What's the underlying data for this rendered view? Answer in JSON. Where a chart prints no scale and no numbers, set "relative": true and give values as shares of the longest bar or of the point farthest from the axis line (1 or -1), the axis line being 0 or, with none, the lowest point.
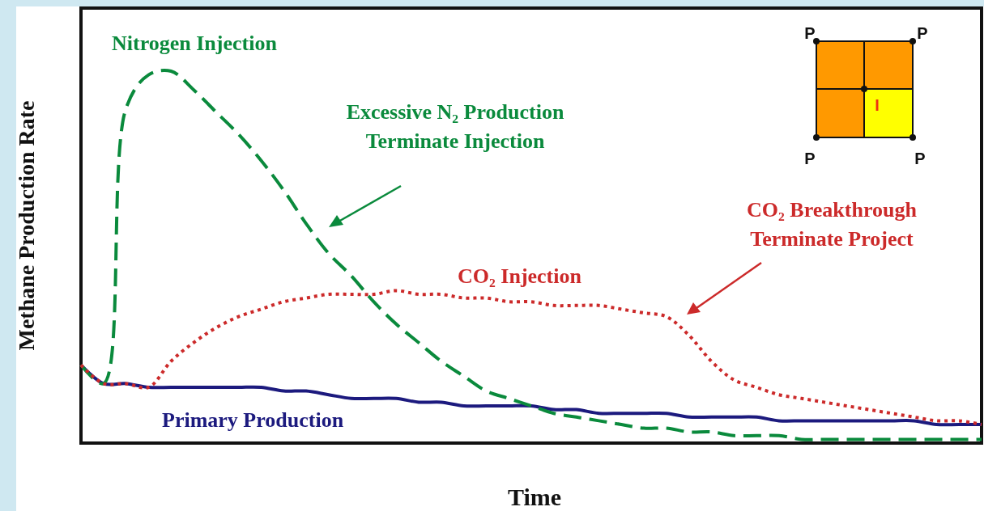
{
  "chart_data": {
    "type": "line",
    "relative": true,
    "ylabel": "Methane Production Rate",
    "xlabel": "Time",
    "legend": false,
    "marker": "none",
    "categories": [
      null,
      null,
      null,
      null,
      null,
      null,
      null,
      null,
      null,
      null,
      null,
      null,
      null,
      null,
      null,
      null,
      null,
      null,
      null,
      null,
      null,
      null,
      null,
      null,
      null,
      null,
      null,
      null,
      null,
      null,
      null,
      null,
      null,
      null,
      null,
      null,
      null,
      null,
      null,
      null,
      null
    ],
    "series": [
      {
        "name": "Primary Production",
        "color": "#1c1a7e",
        "line_style": "solid",
        "values": [
          0.21,
          0.16,
          0.16,
          0.15,
          0.15,
          0.15,
          0.15,
          0.15,
          0.15,
          0.14,
          0.14,
          0.13,
          0.12,
          0.12,
          0.12,
          0.11,
          0.11,
          0.1,
          0.1,
          0.1,
          0.1,
          0.09,
          0.09,
          0.08,
          0.08,
          0.08,
          0.08,
          0.07,
          0.07,
          0.07,
          0.07,
          0.06,
          0.06,
          0.06,
          0.06,
          0.06,
          0.06,
          0.06,
          0.05,
          0.05,
          0.05
        ]
      },
      {
        "name": "Nitrogen Injection",
        "color": "#0a8a3c",
        "line_style": "dashed",
        "values": [
          0.21,
          0.16,
          0.9,
          0.99,
          1,
          0.95,
          0.89,
          0.83,
          0.76,
          0.68,
          0.59,
          0.51,
          0.45,
          0.38,
          0.32,
          0.27,
          0.22,
          0.18,
          0.14,
          0.12,
          0.1,
          0.08,
          0.07,
          0.06,
          0.05,
          0.04,
          0.04,
          0.03,
          0.03,
          0.02,
          0.02,
          0.02,
          0.01,
          0.01,
          0.01,
          0.01,
          0.01,
          0.01,
          0.01,
          0.01,
          0.01
        ]
      },
      {
        "name": "CO₂ Injection",
        "color": "#cc2a2a",
        "line_style": "dotted",
        "values": [
          0.21,
          0.16,
          0.16,
          0.15,
          0.22,
          0.27,
          0.31,
          0.34,
          0.36,
          0.38,
          0.39,
          0.4,
          0.4,
          0.4,
          0.41,
          0.4,
          0.4,
          0.39,
          0.39,
          0.38,
          0.38,
          0.37,
          0.37,
          0.37,
          0.36,
          0.35,
          0.34,
          0.29,
          0.22,
          0.17,
          0.15,
          0.13,
          0.12,
          0.11,
          0.1,
          0.09,
          0.08,
          0.07,
          0.06,
          0.06,
          0.05
        ]
      }
    ],
    "annotations": [
      "Excessive N₂ Production\nTerminate Injection",
      "CO₂ Breakthrough\nTerminate Project",
      "P",
      "P",
      "P",
      "P",
      "I"
    ]
  }
}
